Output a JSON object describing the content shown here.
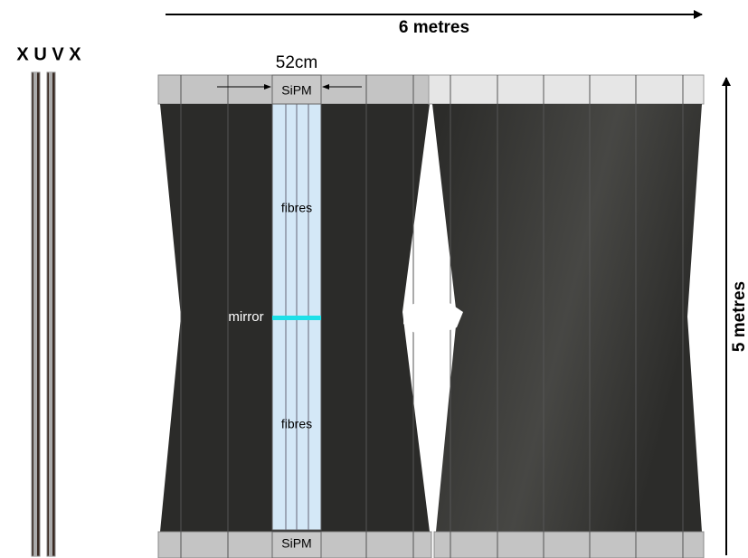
{
  "layers": "X U V X",
  "dimensions": {
    "width": "6 metres",
    "height": "5 metres",
    "strip_width": "52cm"
  },
  "strip": {
    "sipm_top": "SiPM",
    "fibres_top": "fibres",
    "mirror": "mirror",
    "fibres_bottom": "fibres",
    "sipm_bottom": "SiPM"
  }
}
